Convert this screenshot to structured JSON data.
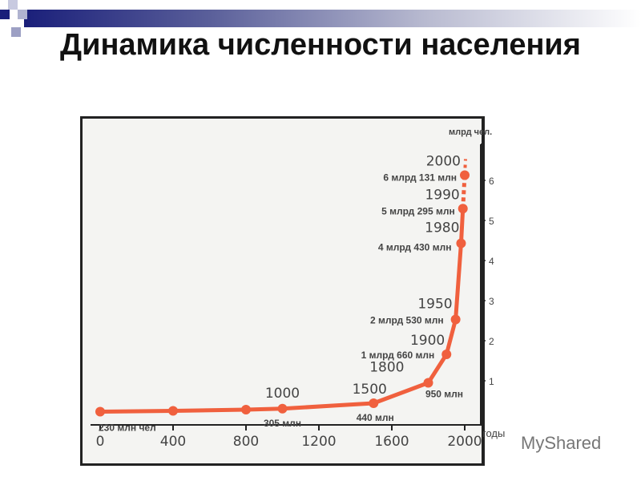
{
  "title": "Динамика численности населения",
  "colors": {
    "series": "#f0603e",
    "banner": "#1a1f7a"
  },
  "watermark": "MyShared",
  "chart_data": {
    "type": "line",
    "title": "",
    "xlabel": "годы",
    "ylabel": "млрд чел.",
    "xlim": [
      0,
      2000
    ],
    "ylim": [
      0,
      6.5
    ],
    "xticks": [
      "0",
      "400",
      "800",
      "1200",
      "1600",
      "2000"
    ],
    "yticks": [
      "1",
      "2",
      "3",
      "4",
      "5",
      "6"
    ],
    "grid": false,
    "points": [
      {
        "x": 0,
        "y": 0.23,
        "year": "",
        "label": "230 млн чел"
      },
      {
        "x": 400,
        "y": 0.25,
        "year": "",
        "label": ""
      },
      {
        "x": 800,
        "y": 0.28,
        "year": "",
        "label": ""
      },
      {
        "x": 1000,
        "y": 0.305,
        "year": "1000",
        "label": "305 млн"
      },
      {
        "x": 1500,
        "y": 0.44,
        "year": "1500",
        "label": "440 млн"
      },
      {
        "x": 1800,
        "y": 0.95,
        "year": "1800",
        "label": "950 млн"
      },
      {
        "x": 1900,
        "y": 1.66,
        "year": "1900",
        "label": "1 млрд 660 млн"
      },
      {
        "x": 1950,
        "y": 2.53,
        "year": "1950",
        "label": "2 млрд 530 млн"
      },
      {
        "x": 1980,
        "y": 4.43,
        "year": "1980",
        "label": "4 млрд 430 млн"
      },
      {
        "x": 1990,
        "y": 5.295,
        "year": "1990",
        "label": "5 млрд 295 млн"
      },
      {
        "x": 2000,
        "y": 6.131,
        "year": "2000",
        "label": "6 млрд 131 млн"
      }
    ]
  }
}
